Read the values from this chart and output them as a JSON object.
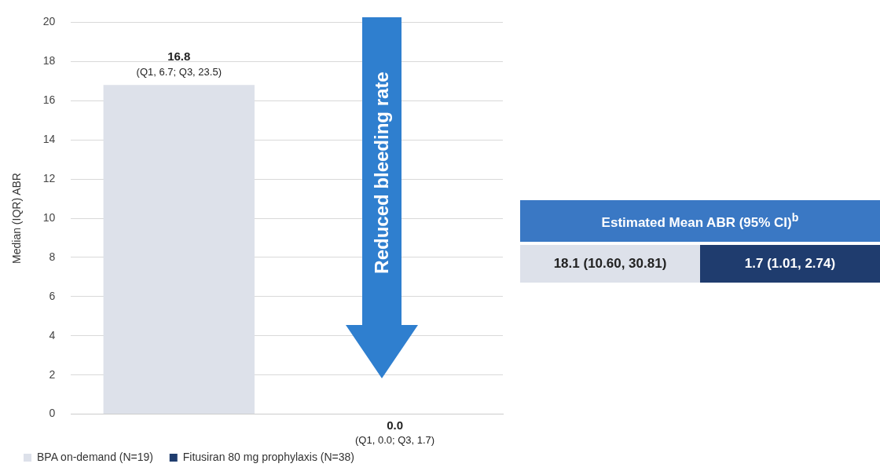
{
  "chart_data": {
    "type": "bar",
    "ylabel": "Median (IQR) ABR",
    "categories": [
      null,
      null
    ],
    "series": [
      {
        "name": "BPA on-demand (N=19)",
        "color": "#dde1ea",
        "values": [
          16.8,
          null
        ],
        "value_labels": [
          "16.8\n(Q1, 6.7; Q3, 23.5)",
          null
        ]
      },
      {
        "name": "Fitusiran 80 mg prophylaxis (N=38)",
        "color": "#1f3c6e",
        "values": [
          null,
          0.0
        ],
        "value_labels": [
          null,
          "0.0\n(Q1, 0.0; Q3, 1.7)"
        ]
      }
    ],
    "ylim": [
      0,
      20
    ],
    "yticks": [
      0,
      2,
      4,
      6,
      8,
      10,
      12,
      14,
      16,
      18,
      20
    ],
    "grid": "y",
    "legend": "bottom left",
    "annotations": [
      "Reduced bleeding rate",
      "Estimated Mean ABR (95% CI)$^{b}$",
      "18.1 (10.60, 30.81)",
      "1.7 (1.01, 2.74)"
    ]
  }
}
